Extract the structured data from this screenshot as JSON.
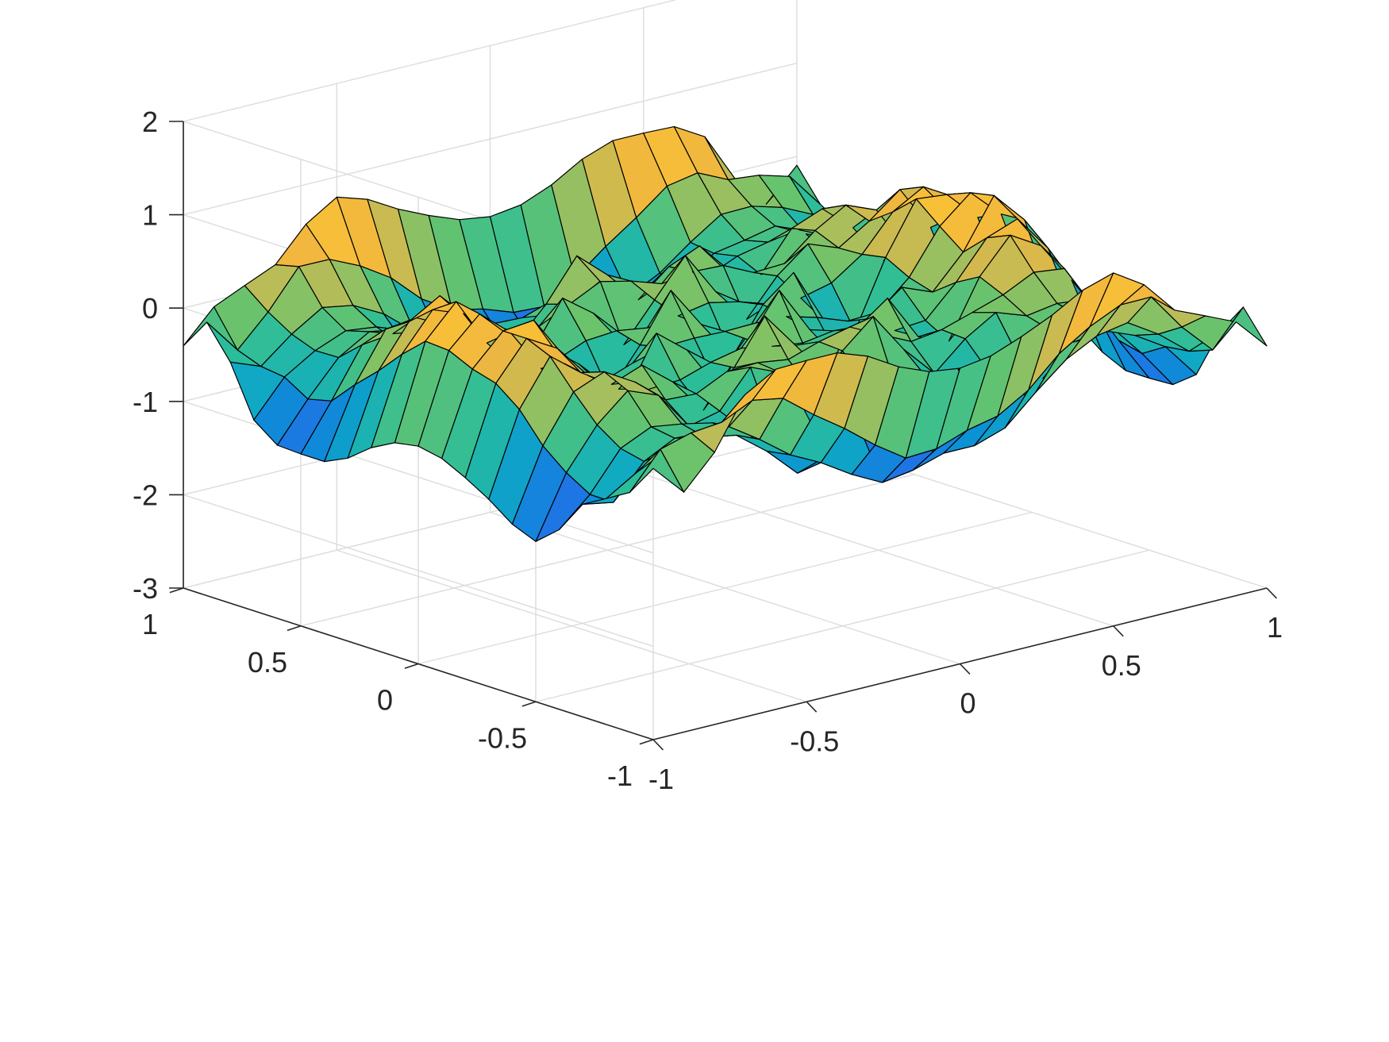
{
  "chart_data": {
    "type": "surface",
    "title": "",
    "xlabel": "",
    "ylabel": "",
    "zlabel": "",
    "xlim": [
      -1,
      1
    ],
    "ylim": [
      -1,
      1
    ],
    "zlim": [
      -3,
      2
    ],
    "grid": true,
    "x_ticks": [
      {
        "value": -1,
        "label": "-1"
      },
      {
        "value": -0.5,
        "label": "-0.5"
      },
      {
        "value": 0,
        "label": "0"
      },
      {
        "value": 0.5,
        "label": "0.5"
      },
      {
        "value": 1,
        "label": "1"
      }
    ],
    "y_ticks": [
      {
        "value": -1,
        "label": "-1"
      },
      {
        "value": -0.5,
        "label": "-0.5"
      },
      {
        "value": 0,
        "label": "0"
      },
      {
        "value": 0.5,
        "label": "0.5"
      },
      {
        "value": 1,
        "label": "1"
      }
    ],
    "z_ticks": [
      {
        "value": -3,
        "label": "-3"
      },
      {
        "value": -2,
        "label": "-2"
      },
      {
        "value": -1,
        "label": "-1"
      },
      {
        "value": 0,
        "label": "0"
      },
      {
        "value": 1,
        "label": "1"
      },
      {
        "value": 2,
        "label": "2"
      }
    ],
    "grid_points": 21,
    "surface_function": "z ≈ 1.35·(x² − y²)·cos(2.6π·r) − 0.45·(1 − r²)·sin(5.2π·x)·sin(5.2π·y) − 0.25",
    "colormap": [
      "#3e26a8",
      "#2e5ef0",
      "#0c8fd6",
      "#10abc2",
      "#2bbd9a",
      "#6bc36b",
      "#b4bd5a",
      "#f0b640",
      "#fcc532",
      "#f9fb0e"
    ],
    "edge_color": "#000000",
    "view": {
      "azimuth": -37.5,
      "elevation": 30
    }
  }
}
